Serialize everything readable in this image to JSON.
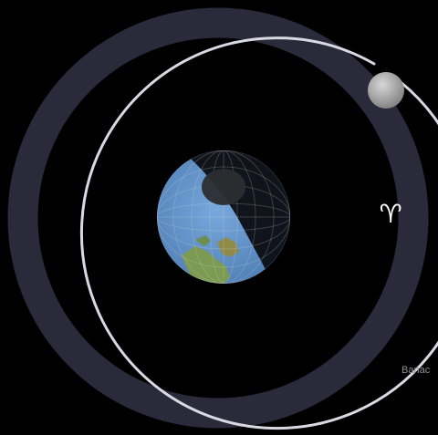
{
  "scene": {
    "zodiac_sign_name": "aries-icon",
    "zodiac_symbol": "♈︎",
    "credit_text": "Banac"
  },
  "colors": {
    "background": "#000000",
    "orbit_ring": "#2b2a3b",
    "orbit_path": "#d9d9e3",
    "ocean": "#5f8fc4",
    "land": "#7c9a52",
    "night_side": "#0d0f16",
    "moon": "#a9a9a9"
  }
}
